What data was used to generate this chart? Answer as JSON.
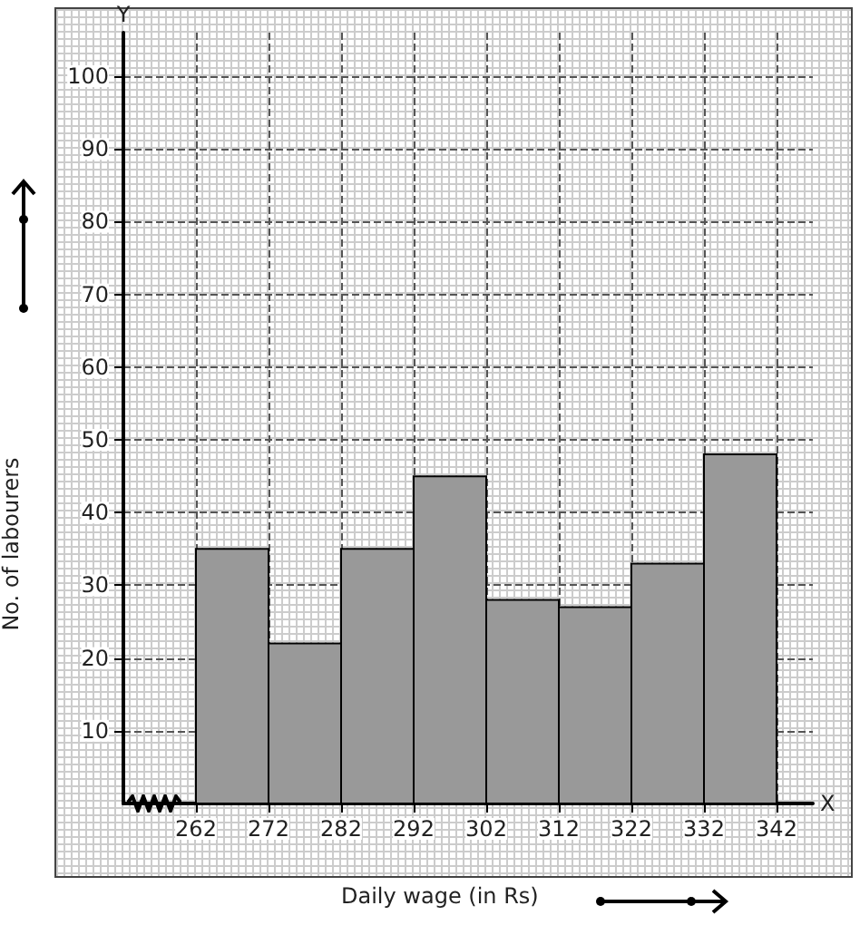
{
  "chart_data": {
    "type": "histogram",
    "xlabel": "Daily wage (in Rs)",
    "ylabel": "No. of labourers",
    "bins": [
      262,
      272,
      282,
      292,
      302,
      312,
      322,
      332,
      342
    ],
    "values": [
      35,
      22,
      35,
      45,
      28,
      27,
      33,
      48
    ],
    "color": "#999999",
    "xlim": [
      252,
      347
    ],
    "ylim": [
      0,
      106
    ],
    "xticks": [
      262,
      272,
      282,
      292,
      302,
      312,
      322,
      332,
      342
    ],
    "yticks": [
      10,
      20,
      30,
      40,
      50,
      60,
      70,
      80,
      90,
      100
    ],
    "annotations": [
      "X",
      "Y"
    ],
    "grid": true
  }
}
